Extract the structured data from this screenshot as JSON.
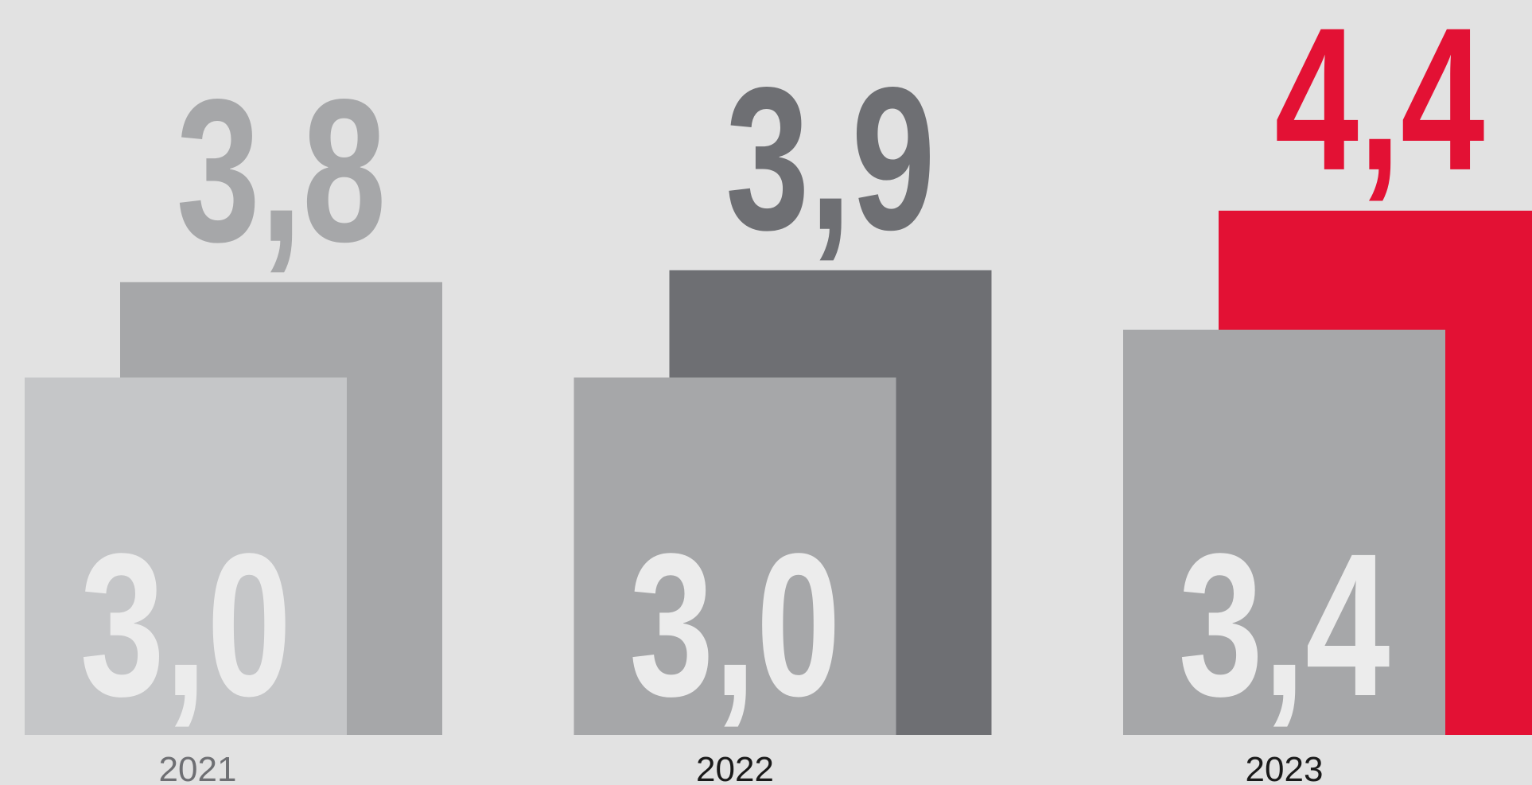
{
  "chart_data": {
    "type": "overlap-bar",
    "categories": [
      "2021",
      "2022",
      "2023"
    ],
    "category_colors": [
      "#6e6f73",
      "#1a1a1a",
      "#1a1a1a"
    ],
    "series": [
      {
        "colors": [
          "#a6a7a9",
          "#6e6f73",
          "#e31134"
        ],
        "label_colors": [
          "#a6a7a9",
          "#6e6f73",
          "#e31134"
        ],
        "values": [
          3.8,
          3.9,
          4.4
        ],
        "value_labels": [
          "3,8",
          "3,9",
          "4,4"
        ]
      },
      {
        "colors": [
          "#c5c6c8",
          "#a6a7a9",
          "#a6a7a9"
        ],
        "label_colors": [
          "#ececec",
          "#ececec",
          "#ececec"
        ],
        "values": [
          3.0,
          3.0,
          3.4
        ],
        "value_labels": [
          "3,0",
          "3,0",
          "3,4"
        ]
      }
    ]
  }
}
